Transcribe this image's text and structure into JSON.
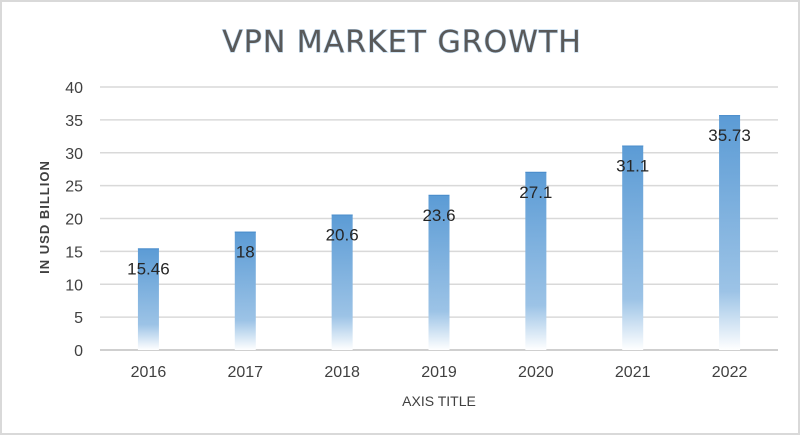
{
  "chart_data": {
    "type": "bar",
    "title": "VPN MARKET GROWTH",
    "xlabel": "AXIS TITLE",
    "ylabel": "IN USD BILLION",
    "categories": [
      "2016",
      "2017",
      "2018",
      "2019",
      "2020",
      "2021",
      "2022"
    ],
    "values": [
      15.46,
      18,
      20.6,
      23.6,
      27.1,
      31.1,
      35.73
    ],
    "data_labels": [
      "15.46",
      "18",
      "20.6",
      "23.6",
      "27.1",
      "31.1",
      "35.73"
    ],
    "yticks": [
      "0",
      "5",
      "10",
      "15",
      "20",
      "25",
      "30",
      "35",
      "40"
    ],
    "ylim": [
      0,
      40
    ],
    "grid": true,
    "legend": "none",
    "colors": {
      "bar_top": "#5b9bd5",
      "bar_bottom": "#ffffff",
      "grid": "#d9d9d9",
      "title": "#595959"
    }
  }
}
